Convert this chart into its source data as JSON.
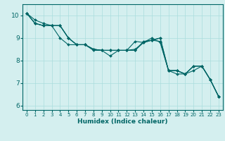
{
  "title": "",
  "xlabel": "Humidex (Indice chaleur)",
  "ylabel": "",
  "bg_color": "#d4efef",
  "grid_color": "#aadddd",
  "line_color": "#006666",
  "xlim": [
    -0.5,
    23.5
  ],
  "ylim": [
    5.8,
    10.5
  ],
  "yticks": [
    6,
    7,
    8,
    9,
    10
  ],
  "xticks": [
    0,
    1,
    2,
    3,
    4,
    5,
    6,
    7,
    8,
    9,
    10,
    11,
    12,
    13,
    14,
    15,
    16,
    17,
    18,
    19,
    20,
    21,
    22,
    23
  ],
  "series": [
    [
      10.1,
      9.8,
      9.65,
      9.55,
      9.55,
      9.0,
      8.7,
      8.7,
      8.5,
      8.45,
      8.45,
      8.45,
      8.45,
      8.85,
      8.8,
      9.0,
      8.8,
      7.55,
      7.55,
      7.4,
      7.75,
      7.75,
      7.15,
      6.4
    ],
    [
      10.1,
      9.65,
      9.55,
      9.55,
      9.0,
      8.7,
      8.7,
      8.7,
      8.45,
      8.45,
      8.2,
      8.45,
      8.45,
      8.45,
      8.85,
      8.9,
      8.85,
      7.55,
      7.55,
      7.4,
      7.55,
      7.75,
      7.15,
      6.4
    ],
    [
      10.1,
      9.65,
      9.55,
      9.55,
      9.55,
      9.0,
      8.7,
      8.7,
      8.5,
      8.45,
      8.45,
      8.45,
      8.45,
      8.45,
      8.8,
      8.9,
      9.0,
      7.55,
      7.55,
      7.4,
      7.75,
      7.75,
      7.15,
      6.4
    ],
    [
      10.1,
      9.65,
      9.55,
      9.55,
      9.55,
      9.0,
      8.7,
      8.7,
      8.5,
      8.45,
      8.45,
      8.45,
      8.45,
      8.5,
      8.8,
      8.9,
      9.0,
      7.55,
      7.4,
      7.4,
      7.75,
      7.75,
      7.15,
      6.4
    ]
  ],
  "xlabel_fontsize": 6.5,
  "tick_fontsize_x": 5.0,
  "tick_fontsize_y": 6.5,
  "marker_size": 2.0,
  "line_width": 0.8
}
